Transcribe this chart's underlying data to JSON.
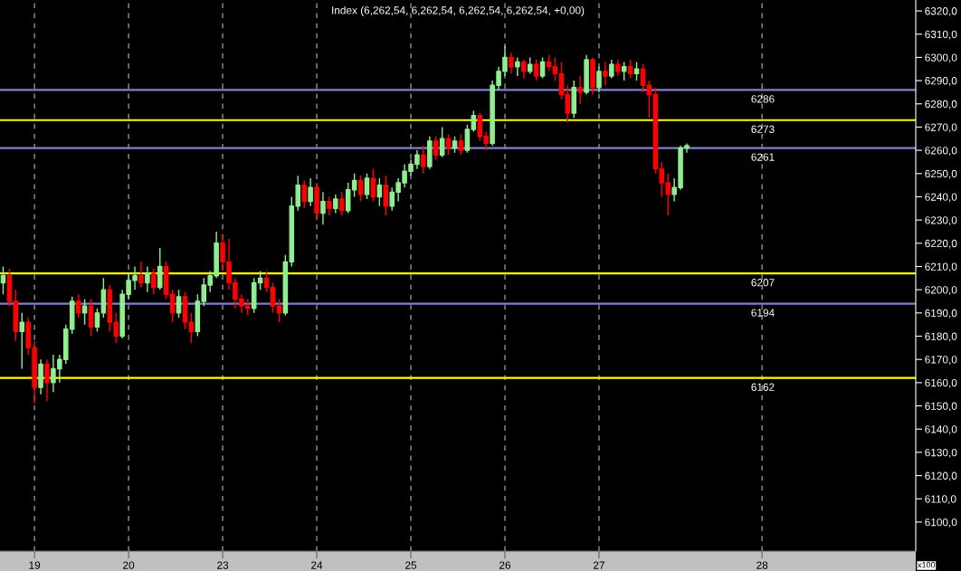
{
  "chart_data": {
    "type": "candlestick",
    "title": "Index (6,262,54, 6,262,54, 6,262,54, 6,262,54, +0,00)",
    "categories": [
      null,
      null,
      null,
      null,
      null,
      "19",
      null,
      null,
      null,
      null,
      null,
      null,
      null,
      null,
      null,
      null,
      null,
      null,
      null,
      null,
      "20",
      null,
      null,
      null,
      null,
      null,
      null,
      null,
      null,
      null,
      null,
      null,
      null,
      null,
      null,
      "23",
      null,
      null,
      null,
      null,
      null,
      null,
      null,
      null,
      null,
      null,
      null,
      null,
      null,
      null,
      "24",
      null,
      null,
      null,
      null,
      null,
      null,
      null,
      null,
      null,
      null,
      null,
      null,
      null,
      null,
      "25",
      null,
      null,
      null,
      null,
      null,
      null,
      null,
      null,
      null,
      null,
      null,
      null,
      null,
      null,
      "26",
      null,
      null,
      null,
      null,
      null,
      null,
      null,
      null,
      null,
      null,
      null,
      null,
      null,
      null,
      "27",
      null,
      null,
      null,
      null,
      null,
      null,
      null,
      null,
      null,
      null,
      null,
      null,
      null,
      null,
      null,
      null,
      null,
      null,
      null,
      null,
      null,
      null,
      null,
      null,
      null,
      "28",
      null,
      null,
      null,
      null,
      null,
      null,
      null,
      null,
      null,
      null,
      null,
      null,
      null,
      null,
      null,
      null,
      null,
      null,
      null,
      null,
      null,
      null,
      null,
      null
    ],
    "ohlc": [
      [
        6203,
        6210,
        6198,
        6206
      ],
      [
        6206,
        6209,
        6193,
        6195
      ],
      [
        6195,
        6200,
        6178,
        6182
      ],
      [
        6182,
        6190,
        6166,
        6186
      ],
      [
        6186,
        6188,
        6172,
        6175
      ],
      [
        6175,
        6178,
        6151,
        6158
      ],
      [
        6158,
        6170,
        6155,
        6168
      ],
      [
        6168,
        6170,
        6152,
        6160
      ],
      [
        6160,
        6172,
        6156,
        6166
      ],
      [
        6166,
        6172,
        6160,
        6170
      ],
      [
        6170,
        6185,
        6168,
        6183
      ],
      [
        6183,
        6197,
        6181,
        6195
      ],
      [
        6195,
        6198,
        6188,
        6190
      ],
      [
        6190,
        6196,
        6185,
        6193
      ],
      [
        6193,
        6196,
        6180,
        6184
      ],
      [
        6184,
        6192,
        6182,
        6190
      ],
      [
        6190,
        6205,
        6188,
        6200
      ],
      [
        6200,
        6202,
        6182,
        6186
      ],
      [
        6186,
        6190,
        6177,
        6180
      ],
      [
        6180,
        6200,
        6179,
        6198
      ],
      [
        6198,
        6207,
        6196,
        6204
      ],
      [
        6204,
        6210,
        6200,
        6206
      ],
      [
        6206,
        6212,
        6201,
        6203
      ],
      [
        6203,
        6210,
        6199,
        6207
      ],
      [
        6207,
        6209,
        6198,
        6201
      ],
      [
        6201,
        6218,
        6200,
        6210
      ],
      [
        6210,
        6212,
        6196,
        6198
      ],
      [
        6198,
        6200,
        6186,
        6190
      ],
      [
        6190,
        6200,
        6188,
        6197
      ],
      [
        6197,
        6199,
        6183,
        6186
      ],
      [
        6186,
        6190,
        6177,
        6182
      ],
      [
        6182,
        6198,
        6180,
        6195
      ],
      [
        6195,
        6205,
        6193,
        6202
      ],
      [
        6202,
        6208,
        6199,
        6206
      ],
      [
        6206,
        6225,
        6205,
        6220
      ],
      [
        6220,
        6224,
        6208,
        6212
      ],
      [
        6212,
        6222,
        6200,
        6203
      ],
      [
        6203,
        6205,
        6192,
        6196
      ],
      [
        6196,
        6198,
        6190,
        6193
      ],
      [
        6193,
        6196,
        6189,
        6192
      ],
      [
        6192,
        6205,
        6190,
        6203
      ],
      [
        6203,
        6208,
        6200,
        6205
      ],
      [
        6205,
        6208,
        6199,
        6201
      ],
      [
        6201,
        6203,
        6190,
        6193
      ],
      [
        6193,
        6196,
        6186,
        6190
      ],
      [
        6190,
        6215,
        6189,
        6212
      ],
      [
        6212,
        6240,
        6210,
        6236
      ],
      [
        6236,
        6249,
        6234,
        6245
      ],
      [
        6245,
        6247,
        6235,
        6238
      ],
      [
        6238,
        6248,
        6236,
        6244
      ],
      [
        6244,
        6246,
        6230,
        6233
      ],
      [
        6233,
        6242,
        6228,
        6238
      ],
      [
        6238,
        6240,
        6232,
        6235
      ],
      [
        6235,
        6241,
        6233,
        6239
      ],
      [
        6239,
        6242,
        6232,
        6234
      ],
      [
        6234,
        6246,
        6233,
        6243
      ],
      [
        6243,
        6250,
        6240,
        6247
      ],
      [
        6247,
        6249,
        6238,
        6241
      ],
      [
        6241,
        6250,
        6239,
        6248
      ],
      [
        6248,
        6252,
        6238,
        6240
      ],
      [
        6240,
        6248,
        6236,
        6245
      ],
      [
        6245,
        6249,
        6232,
        6236
      ],
      [
        6236,
        6244,
        6234,
        6242
      ],
      [
        6242,
        6248,
        6238,
        6246
      ],
      [
        6246,
        6254,
        6244,
        6251
      ],
      [
        6251,
        6256,
        6249,
        6254
      ],
      [
        6254,
        6260,
        6252,
        6258
      ],
      [
        6258,
        6262,
        6250,
        6253
      ],
      [
        6253,
        6266,
        6252,
        6264
      ],
      [
        6264,
        6266,
        6256,
        6258
      ],
      [
        6258,
        6270,
        6257,
        6265
      ],
      [
        6265,
        6267,
        6258,
        6261
      ],
      [
        6261,
        6266,
        6259,
        6264
      ],
      [
        6264,
        6267,
        6258,
        6260
      ],
      [
        6260,
        6271,
        6259,
        6269
      ],
      [
        6269,
        6277,
        6268,
        6275
      ],
      [
        6275,
        6276,
        6264,
        6266
      ],
      [
        6266,
        6268,
        6260,
        6263
      ],
      [
        6263,
        6290,
        6262,
        6288
      ],
      [
        6288,
        6296,
        6286,
        6294
      ],
      [
        6294,
        6305,
        6292,
        6300
      ],
      [
        6300,
        6302,
        6293,
        6296
      ],
      [
        6296,
        6300,
        6292,
        6298
      ],
      [
        6298,
        6299,
        6291,
        6294
      ],
      [
        6294,
        6300,
        6293,
        6297
      ],
      [
        6297,
        6299,
        6290,
        6292
      ],
      [
        6292,
        6300,
        6291,
        6298
      ],
      [
        6298,
        6301,
        6294,
        6296
      ],
      [
        6296,
        6300,
        6290,
        6293
      ],
      [
        6293,
        6298,
        6282,
        6284
      ],
      [
        6284,
        6288,
        6272,
        6276
      ],
      [
        6276,
        6290,
        6274,
        6287
      ],
      [
        6287,
        6292,
        6280,
        6285
      ],
      [
        6285,
        6301,
        6284,
        6299
      ],
      [
        6299,
        6300,
        6284,
        6287
      ],
      [
        6287,
        6296,
        6285,
        6294
      ],
      [
        6294,
        6298,
        6288,
        6292
      ],
      [
        6292,
        6299,
        6291,
        6297
      ],
      [
        6297,
        6299,
        6292,
        6294
      ],
      [
        6294,
        6298,
        6290,
        6296
      ],
      [
        6296,
        6299,
        6291,
        6293
      ],
      [
        6293,
        6298,
        6290,
        6295
      ],
      [
        6295,
        6297,
        6285,
        6288
      ],
      [
        6288,
        6290,
        6274,
        6284
      ],
      [
        6284,
        6287,
        6250,
        6252
      ],
      [
        6252,
        6255,
        6240,
        6246
      ],
      [
        6246,
        6250,
        6232,
        6241
      ],
      [
        6241,
        6248,
        6238,
        6244
      ],
      [
        6244,
        6262,
        6243,
        6261
      ],
      [
        6261,
        6263,
        6259,
        6262
      ],
      null,
      null,
      null,
      null,
      null,
      null,
      null,
      null,
      null,
      null,
      null,
      null,
      null,
      null,
      null,
      null,
      null,
      null,
      null,
      null,
      null,
      null,
      null,
      null,
      null,
      null,
      null,
      null,
      null,
      null,
      null,
      null,
      null,
      null,
      null,
      null
    ],
    "colors": [
      "#90ee90",
      "#ff0000",
      "#ff0000",
      "#90ee90",
      "#ff0000",
      "#ff0000",
      "#90ee90",
      "#ff0000",
      "#90ee90",
      "#90ee90",
      "#90ee90",
      "#90ee90",
      "#ff0000",
      "#90ee90",
      "#ff0000",
      "#90ee90",
      "#90ee90",
      "#ff0000",
      "#ff0000",
      "#90ee90",
      "#90ee90",
      "#90ee90",
      "#ff0000",
      "#90ee90",
      "#ff0000",
      "#90ee90",
      "#ff0000",
      "#ff0000",
      "#90ee90",
      "#ff0000",
      "#ff0000",
      "#90ee90",
      "#90ee90",
      "#90ee90",
      "#90ee90",
      "#ff0000",
      "#ff0000",
      "#ff0000",
      "#ff0000",
      "#ff0000",
      "#90ee90",
      "#90ee90",
      "#ff0000",
      "#ff0000",
      "#ff0000",
      "#90ee90",
      "#90ee90",
      "#90ee90",
      "#ff0000",
      "#90ee90",
      "#ff0000",
      "#90ee90",
      "#ff0000",
      "#90ee90",
      "#ff0000",
      "#90ee90",
      "#90ee90",
      "#ff0000",
      "#90ee90",
      "#ff0000",
      "#90ee90",
      "#ff0000",
      "#90ee90",
      "#90ee90",
      "#90ee90",
      "#90ee90",
      "#90ee90",
      "#ff0000",
      "#90ee90",
      "#ff0000",
      "#90ee90",
      "#ff0000",
      "#90ee90",
      "#ff0000",
      "#90ee90",
      "#90ee90",
      "#ff0000",
      "#ff0000",
      "#90ee90",
      "#90ee90",
      "#90ee90",
      "#ff0000",
      "#90ee90",
      "#ff0000",
      "#90ee90",
      "#ff0000",
      "#90ee90",
      "#ff0000",
      "#ff0000",
      "#ff0000",
      "#ff0000",
      "#90ee90",
      "#ff0000",
      "#90ee90",
      "#ff0000",
      "#90ee90",
      "#ff0000",
      "#90ee90",
      "#ff0000",
      "#90ee90",
      "#ff0000",
      "#90ee90",
      "#ff0000",
      "#ff0000",
      "#ff0000",
      "#ff0000",
      "#ff0000",
      "#90ee90",
      "#90ee90",
      "#90ee90",
      null,
      null,
      null,
      null,
      null,
      null,
      null,
      null,
      null,
      null,
      null,
      null,
      null,
      null,
      null,
      null,
      null,
      null,
      null,
      null,
      null,
      null,
      null,
      null,
      null,
      null,
      null,
      null,
      null,
      null,
      null,
      null,
      null,
      null,
      null,
      null
    ],
    "ylim": [
      6087.5,
      6324.7
    ],
    "yticks": [
      {
        "value": 6100,
        "label": "6100,0"
      },
      {
        "value": 6110,
        "label": "6110,0"
      },
      {
        "value": 6120,
        "label": "6120,0"
      },
      {
        "value": 6130,
        "label": "6130,0"
      },
      {
        "value": 6140,
        "label": "6140,0"
      },
      {
        "value": 6150,
        "label": "6150,0"
      },
      {
        "value": 6160,
        "label": "6160,0"
      },
      {
        "value": 6170,
        "label": "6170,0"
      },
      {
        "value": 6180,
        "label": "6180,0"
      },
      {
        "value": 6190,
        "label": "6190,0"
      },
      {
        "value": 6200,
        "label": "6200,0"
      },
      {
        "value": 6210,
        "label": "6210,0"
      },
      {
        "value": 6220,
        "label": "6220,0"
      },
      {
        "value": 6230,
        "label": "6230,0"
      },
      {
        "value": 6240,
        "label": "6240,0"
      },
      {
        "value": 6250,
        "label": "6250,0"
      },
      {
        "value": 6260,
        "label": "6260,0"
      },
      {
        "value": 6270,
        "label": "6270,0"
      },
      {
        "value": 6280,
        "label": "6280,0"
      },
      {
        "value": 6290,
        "label": "6290,0"
      },
      {
        "value": 6300,
        "label": "6300,0"
      },
      {
        "value": 6310,
        "label": "6310,0"
      },
      {
        "value": 6320,
        "label": "6320,0"
      }
    ],
    "ref_lines": [
      {
        "axis": "y",
        "value": 6286,
        "label": "6286",
        "color": "#8080d0"
      },
      {
        "axis": "y",
        "value": 6273,
        "label": "6273",
        "color": "#ffff00"
      },
      {
        "axis": "y",
        "value": 6261,
        "label": "6261",
        "color": "#8080d0"
      },
      {
        "axis": "y",
        "value": 6207,
        "label": "6207",
        "color": "#ffff00"
      },
      {
        "axis": "y",
        "value": 6194,
        "label": "6194",
        "color": "#8080d0"
      },
      {
        "axis": "y",
        "value": 6162,
        "label": "6162",
        "color": "#ffff00"
      }
    ],
    "grid": "x",
    "annotations": [
      "x100"
    ]
  }
}
